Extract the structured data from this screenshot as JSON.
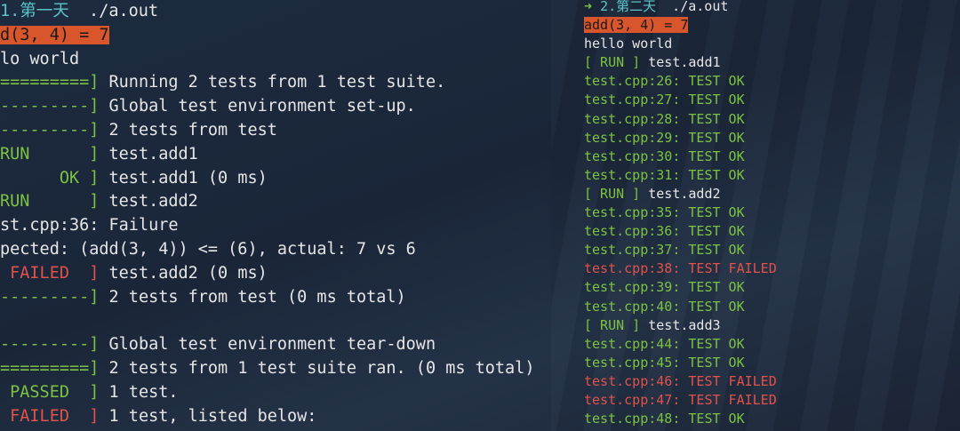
{
  "left": {
    "lines": [
      [
        [
          "1.第一天",
          "#5cc4c8"
        ],
        [
          "  ./a.out",
          "#e6e6e6"
        ]
      ],
      [
        [
          "d(3, 4) = 7",
          "#1a1a1a",
          "#d9552c"
        ]
      ],
      [
        [
          "lo world",
          "#e6e6e6"
        ]
      ],
      [
        [
          "=========]",
          "#7cc242"
        ],
        [
          " Running 2 tests from 1 test suite.",
          "#e6e6e6"
        ]
      ],
      [
        [
          "---------]",
          "#7cc242"
        ],
        [
          " Global test environment set-up.",
          "#e6e6e6"
        ]
      ],
      [
        [
          "---------]",
          "#7cc242"
        ],
        [
          " 2 tests from test",
          "#e6e6e6"
        ]
      ],
      [
        [
          "RUN      ]",
          "#7cc242"
        ],
        [
          " test.add1",
          "#e6e6e6"
        ]
      ],
      [
        [
          "      OK ]",
          "#7cc242"
        ],
        [
          " test.add1 (0 ms)",
          "#e6e6e6"
        ]
      ],
      [
        [
          "RUN      ]",
          "#7cc242"
        ],
        [
          " test.add2",
          "#e6e6e6"
        ]
      ],
      [
        [
          "st.cpp:36: Failure",
          "#e6e6e6"
        ]
      ],
      [
        [
          "pected: (add(3, 4)) <= (6), actual: 7 vs 6",
          "#e6e6e6"
        ]
      ],
      [
        [
          " FAILED  ]",
          "#e0524a"
        ],
        [
          " test.add2 (0 ms)",
          "#e6e6e6"
        ]
      ],
      [
        [
          "---------]",
          "#7cc242"
        ],
        [
          " 2 tests from test (0 ms total)",
          "#e6e6e6"
        ]
      ],
      [],
      [
        [
          "---------]",
          "#7cc242"
        ],
        [
          " Global test environment tear-down",
          "#e6e6e6"
        ]
      ],
      [
        [
          "=========]",
          "#7cc242"
        ],
        [
          " 2 tests from 1 test suite ran. (0 ms total)",
          "#e6e6e6"
        ]
      ],
      [
        [
          " PASSED  ]",
          "#7cc242"
        ],
        [
          " 1 test.",
          "#e6e6e6"
        ]
      ],
      [
        [
          " FAILED  ]",
          "#e0524a"
        ],
        [
          " 1 test, listed below:",
          "#e6e6e6"
        ]
      ]
    ]
  },
  "right": {
    "lines": [
      [
        [
          "➜ ",
          "#7cc242"
        ],
        [
          "2.第二天",
          "#5cc4c8"
        ],
        [
          "  ./a.out",
          "#e6e6e6"
        ]
      ],
      [
        [
          "add(3, 4) = 7",
          "#1a1a1a",
          "#d9552c"
        ]
      ],
      [
        [
          "hello world",
          "#e6e6e6"
        ]
      ],
      [
        [
          "[ RUN ]",
          "#7cc242"
        ],
        [
          " test.add1",
          "#e6e6e6"
        ]
      ],
      [
        [
          "test.cpp:26: TEST OK",
          "#7cc242"
        ]
      ],
      [
        [
          "test.cpp:27: TEST OK",
          "#7cc242"
        ]
      ],
      [
        [
          "test.cpp:28: TEST OK",
          "#7cc242"
        ]
      ],
      [
        [
          "test.cpp:29: TEST OK",
          "#7cc242"
        ]
      ],
      [
        [
          "test.cpp:30: TEST OK",
          "#7cc242"
        ]
      ],
      [
        [
          "test.cpp:31: TEST OK",
          "#7cc242"
        ]
      ],
      [
        [
          "[ RUN ]",
          "#7cc242"
        ],
        [
          " test.add2",
          "#e6e6e6"
        ]
      ],
      [
        [
          "test.cpp:35: TEST OK",
          "#7cc242"
        ]
      ],
      [
        [
          "test.cpp:36: TEST OK",
          "#7cc242"
        ]
      ],
      [
        [
          "test.cpp:37: TEST OK",
          "#7cc242"
        ]
      ],
      [
        [
          "test.cpp:38: TEST FAILED",
          "#e0524a"
        ]
      ],
      [
        [
          "test.cpp:39: TEST OK",
          "#7cc242"
        ]
      ],
      [
        [
          "test.cpp:40: TEST OK",
          "#7cc242"
        ]
      ],
      [
        [
          "[ RUN ]",
          "#7cc242"
        ],
        [
          " test.add3",
          "#e6e6e6"
        ]
      ],
      [
        [
          "test.cpp:44: TEST OK",
          "#7cc242"
        ]
      ],
      [
        [
          "test.cpp:45: TEST OK",
          "#7cc242"
        ]
      ],
      [
        [
          "test.cpp:46: TEST FAILED",
          "#e0524a"
        ]
      ],
      [
        [
          "test.cpp:47: TEST FAILED",
          "#e0524a"
        ]
      ],
      [
        [
          "test.cpp:48: TEST OK",
          "#7cc242"
        ]
      ]
    ]
  }
}
